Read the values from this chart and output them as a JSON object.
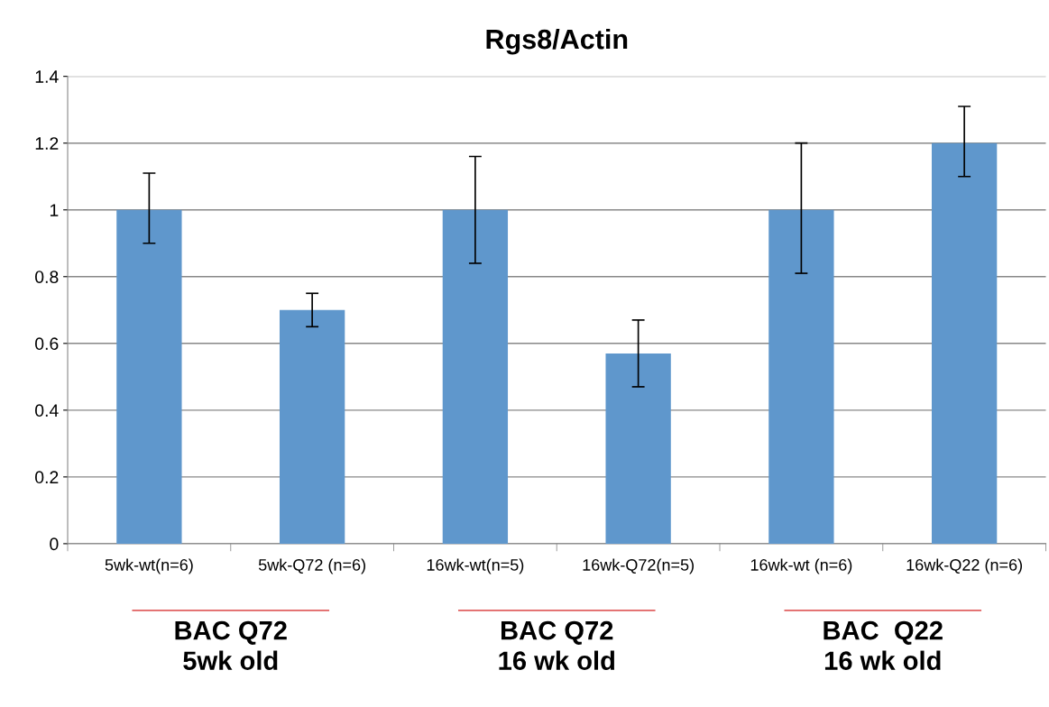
{
  "chart_data": {
    "type": "bar",
    "title": "Rgs8/Actin",
    "categories": [
      "5wk-wt(n=6)",
      "5wk-Q72 (n=6)",
      "16wk-wt(n=5)",
      "16wk-Q72(n=5)",
      "16wk-wt (n=6)",
      "16wk-Q22 (n=6)"
    ],
    "values": [
      1,
      0.7,
      1,
      0.57,
      1,
      1.2
    ],
    "errors": [
      [
        0.9,
        1.11
      ],
      [
        0.65,
        0.75
      ],
      [
        0.84,
        1.16
      ],
      [
        0.47,
        0.67
      ],
      [
        0.81,
        1.2
      ],
      [
        1.1,
        1.31
      ]
    ],
    "color": "#5f97cc",
    "ylim": [
      0,
      1.4
    ],
    "yticks": [
      0,
      0.2,
      0.4,
      0.6,
      0.8,
      1,
      1.2,
      1.4
    ],
    "grid": "y",
    "annotations": [
      "BAC Q72\n5wk old",
      "BAC Q72\n16 wk old",
      "BAC  Q22\n16 wk old"
    ]
  }
}
